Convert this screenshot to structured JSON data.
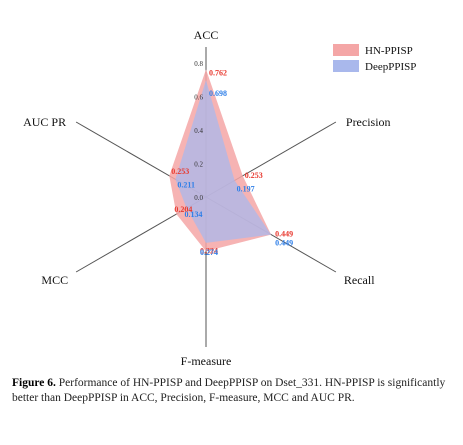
{
  "chart_data": {
    "type": "radar",
    "axes": [
      "ACC",
      "Precision",
      "Recall",
      "F-measure",
      "MCC",
      "AUC PR"
    ],
    "rmax": 0.8,
    "ticks": [
      "0.0",
      "0.2",
      "0.4",
      "0.6",
      "0.8"
    ],
    "series": [
      {
        "name": "HN-PPISP",
        "values": [
          0.762,
          0.253,
          0.449,
          0.324,
          0.204,
          0.253
        ],
        "labels": [
          "0.762",
          "0.253",
          "0.449",
          "0.324",
          "0.204",
          "0.253"
        ],
        "color": "#f4a6a6"
      },
      {
        "name": "DeepPPISP",
        "values": [
          0.698,
          0.197,
          0.449,
          0.274,
          0.134,
          0.211
        ],
        "labels": [
          "0.698",
          "0.197",
          "0.449",
          "0.274",
          "0.134",
          "0.211"
        ],
        "color": "#a9b8ec"
      }
    ]
  },
  "caption": {
    "label": "Figure 6.",
    "text": " Performance of HN-PPISP and DeepPPISP on Dset_331. HN-PPISP is significantly better than DeepPPISP in ACC, Precision, F-measure, MCC and AUC PR."
  }
}
